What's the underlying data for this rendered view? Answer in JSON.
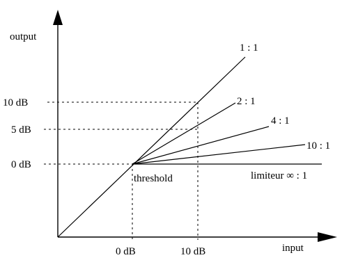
{
  "axes": {
    "x_label": "input",
    "y_label": "output"
  },
  "x_ticks": [
    "0 dB",
    "10 dB"
  ],
  "y_ticks": [
    "0 dB",
    "5 dB",
    "10 dB"
  ],
  "threshold_label": "threshold",
  "ratios": [
    {
      "label": "1 : 1",
      "ratio": "1:1"
    },
    {
      "label": "2 : 1",
      "ratio": "2:1"
    },
    {
      "label": "4 : 1",
      "ratio": "4:1"
    },
    {
      "label": "10 : 1",
      "ratio": "10:1"
    },
    {
      "label": "limiteur ∞ : 1",
      "ratio": "∞:1"
    }
  ],
  "colors": {
    "ink": "#000000",
    "background": "#ffffff"
  }
}
